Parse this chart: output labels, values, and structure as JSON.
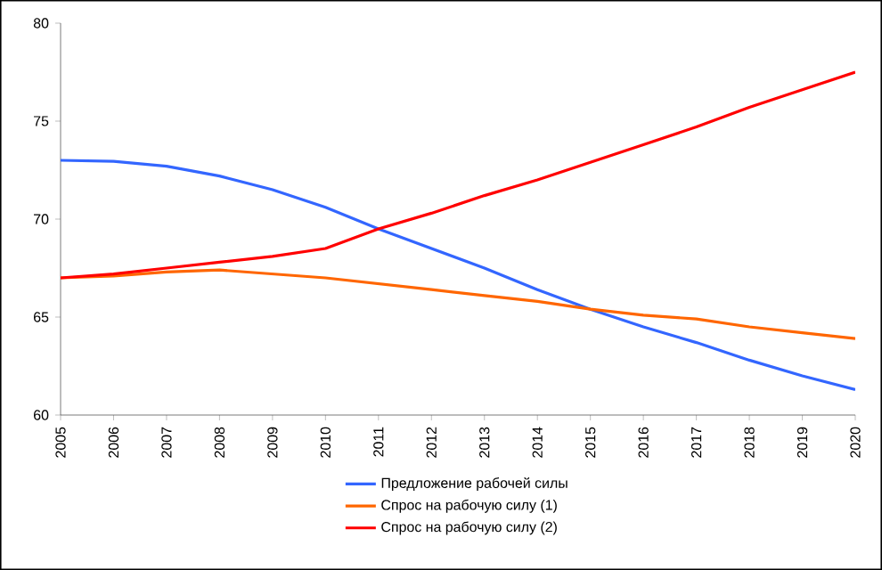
{
  "chart_data": {
    "type": "line",
    "categories": [
      "2005",
      "2006",
      "2007",
      "2008",
      "2009",
      "2010",
      "2011",
      "2012",
      "2013",
      "2014",
      "2015",
      "2016",
      "2017",
      "2018",
      "2019",
      "2020"
    ],
    "series": [
      {
        "name": "Предложение рабочей силы",
        "color": "#3366ff",
        "values": [
          73.0,
          72.95,
          72.7,
          72.2,
          71.5,
          70.6,
          69.5,
          68.5,
          67.5,
          66.4,
          65.4,
          64.5,
          63.7,
          62.8,
          62.0,
          61.3
        ]
      },
      {
        "name": "Спрос на рабочую силу (1)",
        "color": "#ff6600",
        "values": [
          67.0,
          67.1,
          67.3,
          67.4,
          67.2,
          67.0,
          66.7,
          66.4,
          66.1,
          65.8,
          65.4,
          65.1,
          64.9,
          64.5,
          64.2,
          63.9
        ]
      },
      {
        "name": "Спрос на рабочую силу (2)",
        "color": "#ff0000",
        "values": [
          67.0,
          67.2,
          67.5,
          67.8,
          68.1,
          68.5,
          69.5,
          70.3,
          71.2,
          72.0,
          72.9,
          73.8,
          74.7,
          75.7,
          76.6,
          77.5
        ]
      }
    ],
    "ylim": [
      60,
      80
    ],
    "yticks": [
      60,
      65,
      70,
      75,
      80
    ],
    "grid": false,
    "legend": "bottom",
    "marker": "none",
    "line_style": "solid"
  }
}
